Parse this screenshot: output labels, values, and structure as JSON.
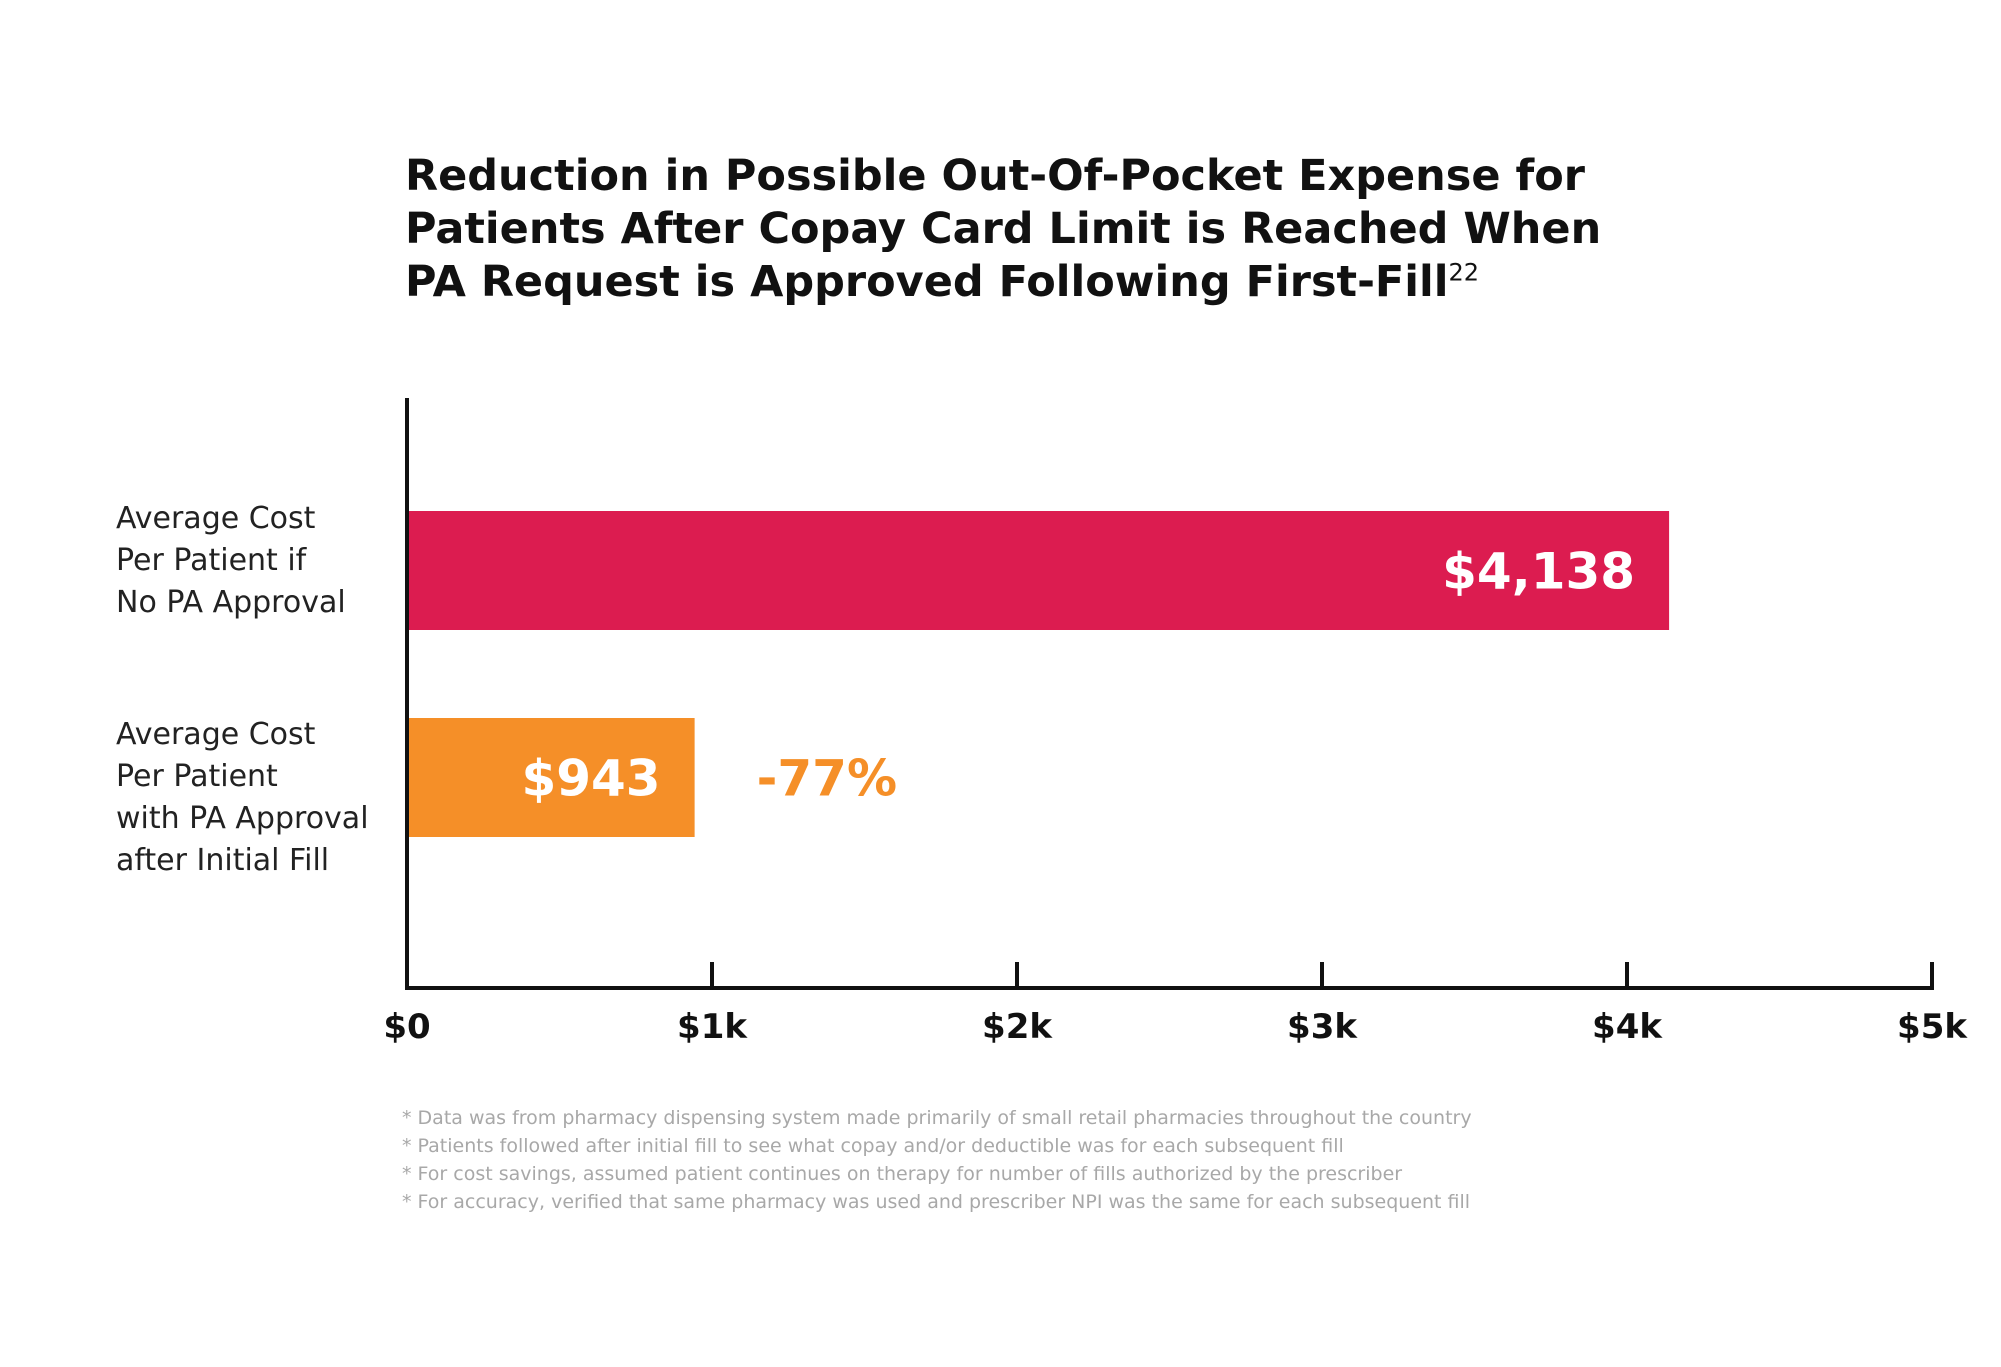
{
  "chart_data": {
    "type": "bar",
    "orientation": "horizontal",
    "title_lines": [
      "Reduction in Possible Out-Of-Pocket Expense for",
      "Patients After Copay Card Limit is Reached When",
      "PA Request is Approved Following First-Fill"
    ],
    "title_superscript": "22",
    "categories": [
      [
        "Average Cost",
        "Per Patient if",
        "No PA Approval"
      ],
      [
        "Average Cost",
        "Per Patient",
        "with PA Approval",
        "after Initial Fill"
      ]
    ],
    "values": [
      4138,
      943
    ],
    "data_labels": [
      "$4,138",
      "$943"
    ],
    "bar_colors": [
      "#dc1c50",
      "#f58f28"
    ],
    "annotation": {
      "text": "-77%",
      "color": "#f58f28"
    },
    "xlim": [
      0,
      5000
    ],
    "x_ticks": [
      0,
      1000,
      2000,
      3000,
      4000,
      5000
    ],
    "x_tick_labels": [
      "$0",
      "$1k",
      "$2k",
      "$3k",
      "$4k",
      "$5k"
    ],
    "grid": false,
    "legend": "none"
  },
  "footnotes": [
    "* Data was from pharmacy dispensing system made primarily of small retail pharmacies throughout the country",
    "* Patients followed after initial fill to see what copay and/or deductible was for each subsequent fill",
    "* For cost savings, assumed patient continues on therapy for number of fills authorized by the prescriber",
    "* For accuracy, verified that same pharmacy was used and prescriber NPI was the same for each subsequent fill"
  ]
}
